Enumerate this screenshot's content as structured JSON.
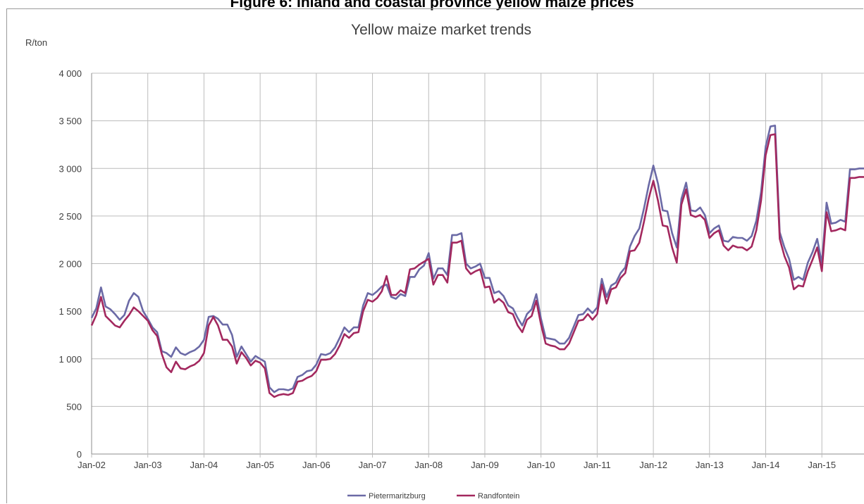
{
  "figure_caption": "Figure 6: Inland and coastal province yellow maize prices",
  "colors": {
    "pietermaritzburg": "#6b6aa6",
    "randfontein": "#a3285e",
    "grid": "#bcbcbc",
    "axis_text": "#404040"
  },
  "chart_data": {
    "type": "line",
    "title": "Yellow maize market trends",
    "ylabel": "R/ton",
    "xlabel": "",
    "ylim": [
      0,
      4000
    ],
    "yticks": [
      0,
      500,
      1000,
      1500,
      2000,
      2500,
      3000,
      3500,
      4000
    ],
    "ytick_labels": [
      "0",
      "500",
      "1 000",
      "1 500",
      "2 000",
      "2 500",
      "3 000",
      "3 500",
      "4 000"
    ],
    "x_start": "Jan-02",
    "x_end": "Nov-15",
    "x_frequency": "monthly",
    "xtick_labels": [
      "Jan-02",
      "Jan-03",
      "Jan-04",
      "Jan-05",
      "Jan-06",
      "Jan-07",
      "Jan-08",
      "Jan-09",
      "Jan-10",
      "Jan-11",
      "Jan-12",
      "Jan-13",
      "Jan-14",
      "Jan-15"
    ],
    "grid": true,
    "legend_position": "bottom",
    "series": [
      {
        "name": "Pietermaritzburg",
        "color": "#6b6aa6",
        "values": [
          1430,
          1530,
          1750,
          1550,
          1520,
          1470,
          1410,
          1460,
          1610,
          1690,
          1650,
          1500,
          1420,
          1330,
          1280,
          1080,
          1060,
          1020,
          1120,
          1060,
          1040,
          1070,
          1090,
          1130,
          1200,
          1440,
          1450,
          1420,
          1360,
          1360,
          1250,
          1020,
          1130,
          1050,
          970,
          1030,
          1000,
          970,
          700,
          650,
          680,
          680,
          670,
          690,
          810,
          830,
          870,
          880,
          940,
          1050,
          1040,
          1060,
          1120,
          1220,
          1330,
          1280,
          1330,
          1330,
          1560,
          1690,
          1670,
          1710,
          1760,
          1780,
          1650,
          1630,
          1680,
          1660,
          1860,
          1860,
          1940,
          1980,
          2110,
          1840,
          1950,
          1950,
          1880,
          2300,
          2300,
          2320,
          2000,
          1950,
          1970,
          2000,
          1850,
          1850,
          1690,
          1710,
          1660,
          1560,
          1530,
          1430,
          1350,
          1470,
          1520,
          1680,
          1420,
          1220,
          1210,
          1200,
          1160,
          1160,
          1220,
          1340,
          1460,
          1470,
          1530,
          1480,
          1540,
          1840,
          1650,
          1770,
          1800,
          1900,
          1960,
          2180,
          2290,
          2370,
          2580,
          2820,
          3030,
          2840,
          2560,
          2550,
          2320,
          2170,
          2680,
          2850,
          2560,
          2550,
          2590,
          2510,
          2320,
          2370,
          2400,
          2240,
          2230,
          2280,
          2270,
          2270,
          2240,
          2290,
          2450,
          2750,
          3230,
          3440,
          3450,
          2330,
          2170,
          2050,
          1830,
          1860,
          1830,
          2010,
          2120,
          2260,
          2000,
          2640,
          2420,
          2430,
          2460,
          2440,
          2990,
          2990,
          3000,
          3000
        ]
      },
      {
        "name": "Randfontein",
        "color": "#a3285e",
        "values": [
          1350,
          1460,
          1650,
          1450,
          1400,
          1350,
          1330,
          1400,
          1460,
          1540,
          1500,
          1450,
          1400,
          1300,
          1240,
          1050,
          910,
          860,
          970,
          900,
          890,
          920,
          940,
          980,
          1060,
          1350,
          1440,
          1350,
          1200,
          1200,
          1130,
          950,
          1070,
          1010,
          930,
          980,
          960,
          900,
          640,
          600,
          620,
          630,
          620,
          640,
          760,
          770,
          800,
          820,
          870,
          990,
          990,
          1000,
          1050,
          1140,
          1260,
          1220,
          1270,
          1280,
          1500,
          1620,
          1600,
          1640,
          1710,
          1870,
          1670,
          1670,
          1720,
          1690,
          1940,
          1950,
          1990,
          2020,
          2050,
          1780,
          1880,
          1880,
          1800,
          2220,
          2220,
          2240,
          1950,
          1890,
          1920,
          1940,
          1750,
          1760,
          1590,
          1630,
          1590,
          1490,
          1470,
          1350,
          1280,
          1410,
          1450,
          1610,
          1360,
          1160,
          1140,
          1130,
          1100,
          1100,
          1160,
          1280,
          1400,
          1410,
          1470,
          1410,
          1470,
          1780,
          1580,
          1730,
          1750,
          1850,
          1900,
          2130,
          2140,
          2220,
          2440,
          2680,
          2870,
          2660,
          2400,
          2390,
          2170,
          2010,
          2620,
          2780,
          2510,
          2490,
          2510,
          2460,
          2270,
          2320,
          2350,
          2190,
          2140,
          2190,
          2170,
          2170,
          2140,
          2180,
          2350,
          2660,
          3140,
          3350,
          3360,
          2260,
          2080,
          1960,
          1730,
          1770,
          1760,
          1920,
          2040,
          2170,
          1920,
          2540,
          2340,
          2350,
          2370,
          2350,
          2900,
          2900,
          2910,
          2910
        ]
      }
    ]
  }
}
